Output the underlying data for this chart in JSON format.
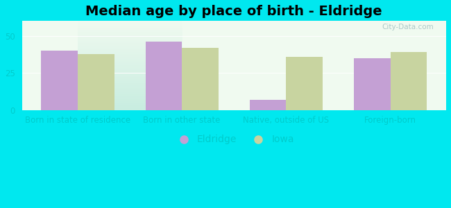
{
  "title": "Median age by place of birth - Eldridge",
  "categories": [
    "Born in state of residence",
    "Born in other state",
    "Native, outside of US",
    "Foreign-born"
  ],
  "eldridge_values": [
    40,
    46,
    7,
    35
  ],
  "iowa_values": [
    38,
    42,
    36,
    39
  ],
  "eldridge_color": "#c4a0d4",
  "iowa_color": "#c8d4a0",
  "background_outer": "#00e8ef",
  "background_inner_top": "#f0faf0",
  "background_inner_bottom": "#c8ede0",
  "ylim": [
    0,
    60
  ],
  "yticks": [
    0,
    25,
    50
  ],
  "bar_width": 0.35,
  "legend_labels": [
    "Eldridge",
    "Iowa"
  ],
  "title_fontsize": 14,
  "axis_fontsize": 8.5,
  "legend_fontsize": 10,
  "tick_color": "#00cccc",
  "watermark": "City-Data.com"
}
